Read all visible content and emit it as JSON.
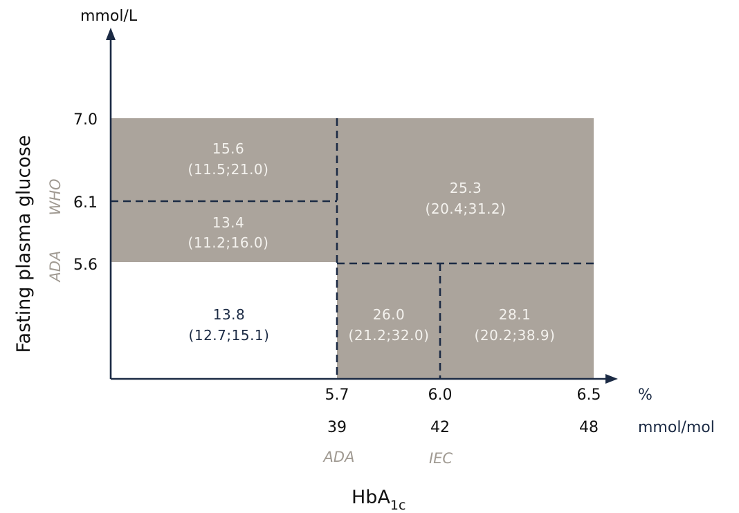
{
  "y_axis": {
    "unit": "mmol/L",
    "label": "Fasting plasma glucose",
    "ticks": [
      "7.0",
      "6.1",
      "5.6"
    ],
    "criteria": [
      "WHO",
      "ADA"
    ]
  },
  "x_axis": {
    "label_main": "HbA",
    "label_sub": "1c",
    "percent_ticks": [
      "5.7",
      "6.0",
      "6.5"
    ],
    "percent_unit": "%",
    "mmolmol_ticks": [
      "39",
      "42",
      "48"
    ],
    "mmolmol_unit": "mmol/mol",
    "criteria": [
      "ADA",
      "IEC"
    ]
  },
  "cells": {
    "top_left": {
      "value": "15.6",
      "ci": "(11.5;21.0)"
    },
    "mid_left": {
      "value": "13.4",
      "ci": "(11.2;16.0)"
    },
    "bottom_left": {
      "value": "13.8",
      "ci": "(12.7;15.1)"
    },
    "top_right": {
      "value": "25.3",
      "ci": "(20.4;31.2)"
    },
    "bottom_mid": {
      "value": "26.0",
      "ci": "(21.2;32.0)"
    },
    "bottom_right": {
      "value": "28.1",
      "ci": "(20.2;38.9)"
    }
  },
  "colors": {
    "region_fill": "#aba49c",
    "axis": "#1b2a44",
    "criteria_text": "#a09a92"
  }
}
